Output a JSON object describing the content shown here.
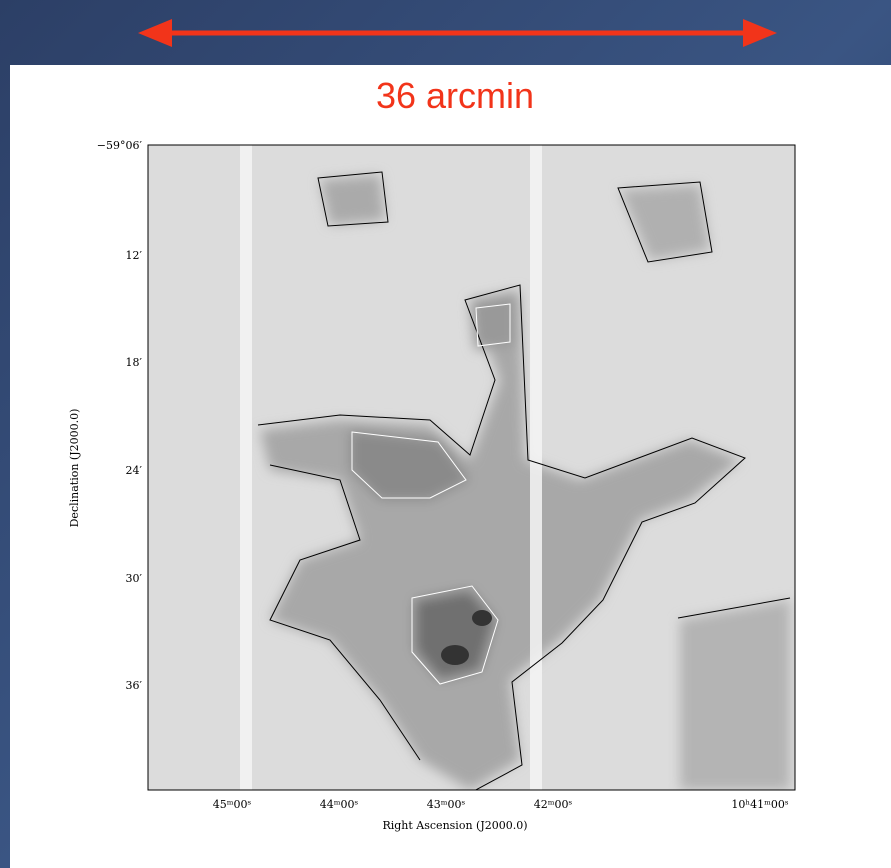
{
  "scale_label": "36 arcmin",
  "figure": {
    "x_label": "Right Ascension (J2000.0)",
    "y_label": "Declination (J2000.0)",
    "x_ticks": [
      "45ᵐ00ˢ",
      "44ᵐ00ˢ",
      "43ᵐ00ˢ",
      "42ᵐ00ˢ",
      "10ʰ41ᵐ00ˢ"
    ],
    "y_ticks": [
      "−59°06′",
      "12′",
      "18′",
      "24′",
      "30′",
      "36′"
    ]
  }
}
